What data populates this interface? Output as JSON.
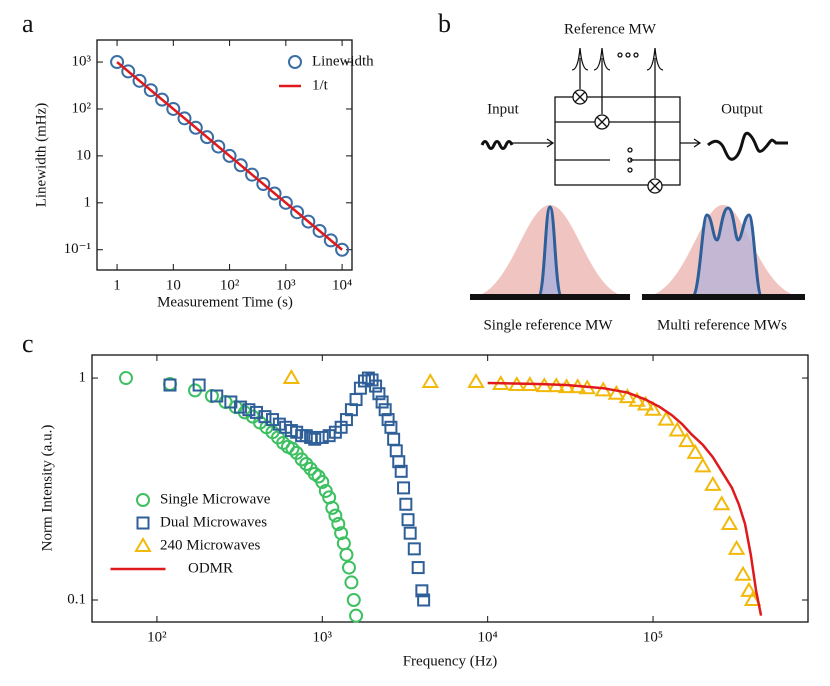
{
  "chart_data": [
    {
      "type": "scatter",
      "label": "a",
      "xlabel": "Measurement Time (s)",
      "ylabel": "Linewidth (mHz)",
      "xscale": "log",
      "yscale": "log",
      "legend": "upper right",
      "xlim": [
        0.44,
        15000
      ],
      "ylim": [
        0.037,
        2950
      ],
      "xticks": [
        1,
        10,
        {
          "value": 100,
          "label": "10²"
        },
        {
          "value": 1000,
          "label": "10³"
        },
        {
          "value": 10000,
          "label": "10⁴"
        }
      ],
      "yticks": [
        {
          "value": 0.1,
          "label": "10⁻¹"
        },
        1,
        10,
        {
          "value": 100,
          "label": "10²"
        },
        {
          "value": 1000,
          "label": "10³"
        }
      ],
      "series": [
        {
          "name": "Linewidth",
          "marker": "circle",
          "color": "#3a6ea5",
          "x": [
            1,
            1.58,
            2.51,
            3.98,
            6.31,
            10,
            15.8,
            25.1,
            39.8,
            63.1,
            100,
            158,
            251,
            398,
            631,
            1000,
            1585,
            2512,
            3981,
            6310,
            10000
          ],
          "values": [
            1000,
            631,
            398,
            251,
            158,
            100,
            63.1,
            39.8,
            25.1,
            15.8,
            10,
            6.31,
            3.98,
            2.51,
            1.58,
            1,
            0.631,
            0.398,
            0.251,
            0.158,
            0.1
          ]
        },
        {
          "name": "1/t",
          "marker": "line",
          "color": "#e0191d",
          "x": [
            1,
            10000
          ],
          "values": [
            1000,
            0.1
          ]
        }
      ]
    },
    {
      "type": "scatter",
      "label": "c",
      "xlabel": "Frequency (Hz)",
      "ylabel": "Norm Intensity (a.u.)",
      "xscale": "log",
      "yscale": "log",
      "legend": "lower left",
      "xlim": [
        40.5,
        865000
      ],
      "ylim": [
        0.0796,
        1.27
      ],
      "xticks": [
        {
          "value": 100,
          "label": "10²"
        },
        {
          "value": 1000,
          "label": "10³"
        },
        {
          "value": 10000,
          "label": "10⁴"
        },
        {
          "value": 100000,
          "label": "10⁵"
        }
      ],
      "yticks": [
        0.1,
        1
      ],
      "series": [
        {
          "name": "Single Microwave",
          "marker": "circle",
          "color": "#3cc060",
          "x": [
            65,
            120,
            170,
            215,
            260,
            300,
            340,
            380,
            420,
            460,
            500,
            540,
            580,
            620,
            660,
            700,
            750,
            800,
            850,
            900,
            950,
            1000,
            1050,
            1100,
            1150,
            1200,
            1250,
            1300,
            1350,
            1400,
            1450,
            1500,
            1550,
            1600
          ],
          "values": [
            1.0,
            0.94,
            0.88,
            0.83,
            0.78,
            0.74,
            0.7,
            0.67,
            0.63,
            0.6,
            0.57,
            0.54,
            0.51,
            0.49,
            0.48,
            0.46,
            0.43,
            0.41,
            0.39,
            0.37,
            0.36,
            0.34,
            0.31,
            0.29,
            0.26,
            0.24,
            0.22,
            0.2,
            0.18,
            0.16,
            0.14,
            0.12,
            0.1,
            0.085
          ]
        },
        {
          "name": "Dual Microwaves",
          "marker": "square",
          "color": "#2f5f98",
          "x": [
            120,
            180,
            230,
            280,
            320,
            360,
            400,
            450,
            500,
            550,
            600,
            650,
            700,
            750,
            800,
            850,
            900,
            1000,
            1100,
            1200,
            1300,
            1400,
            1500,
            1600,
            1700,
            1800,
            1900,
            2000,
            2100,
            2200,
            2300,
            2400,
            2500,
            2600,
            2700,
            2800,
            2900,
            3000,
            3100,
            3200,
            3300,
            3400,
            3600,
            3800,
            4000,
            4100
          ],
          "values": [
            0.93,
            0.93,
            0.83,
            0.78,
            0.74,
            0.72,
            0.7,
            0.67,
            0.65,
            0.62,
            0.6,
            0.58,
            0.57,
            0.55,
            0.55,
            0.54,
            0.53,
            0.54,
            0.55,
            0.57,
            0.6,
            0.65,
            0.72,
            0.8,
            0.9,
            0.97,
            1.0,
            0.98,
            0.92,
            0.85,
            0.78,
            0.72,
            0.65,
            0.6,
            0.53,
            0.47,
            0.42,
            0.38,
            0.32,
            0.27,
            0.23,
            0.2,
            0.17,
            0.14,
            0.11,
            0.1
          ]
        },
        {
          "name": "240 Microwaves",
          "marker": "triangle",
          "color": "#f2b90a",
          "x": [
            650,
            4500,
            8500,
            12000,
            15000,
            18000,
            22000,
            26000,
            30000,
            35000,
            40000,
            50000,
            60000,
            70000,
            80000,
            90000,
            100000,
            120000,
            140000,
            160000,
            180000,
            200000,
            230000,
            260000,
            290000,
            320000,
            350000,
            380000,
            400000
          ],
          "values": [
            1.0,
            0.96,
            0.96,
            0.94,
            0.93,
            0.93,
            0.92,
            0.92,
            0.91,
            0.91,
            0.9,
            0.88,
            0.85,
            0.82,
            0.79,
            0.76,
            0.72,
            0.65,
            0.58,
            0.52,
            0.46,
            0.4,
            0.33,
            0.27,
            0.22,
            0.17,
            0.13,
            0.11,
            0.1
          ]
        },
        {
          "name": "ODMR",
          "marker": "line",
          "color": "#e0191d",
          "x": [
            10000,
            20000,
            30000,
            50000,
            70000,
            90000,
            110000,
            130000,
            150000,
            170000,
            200000,
            230000,
            260000,
            300000,
            330000,
            360000,
            390000,
            420000,
            450000
          ],
          "values": [
            0.95,
            0.94,
            0.93,
            0.9,
            0.86,
            0.8,
            0.74,
            0.68,
            0.62,
            0.56,
            0.5,
            0.44,
            0.38,
            0.32,
            0.27,
            0.22,
            0.16,
            0.11,
            0.085
          ]
        }
      ]
    }
  ],
  "diagram": {
    "label": "b",
    "reference": "Reference MW",
    "input": "Input",
    "output": "Output",
    "single": "Single reference MW",
    "multi": "Multi reference MWs"
  }
}
